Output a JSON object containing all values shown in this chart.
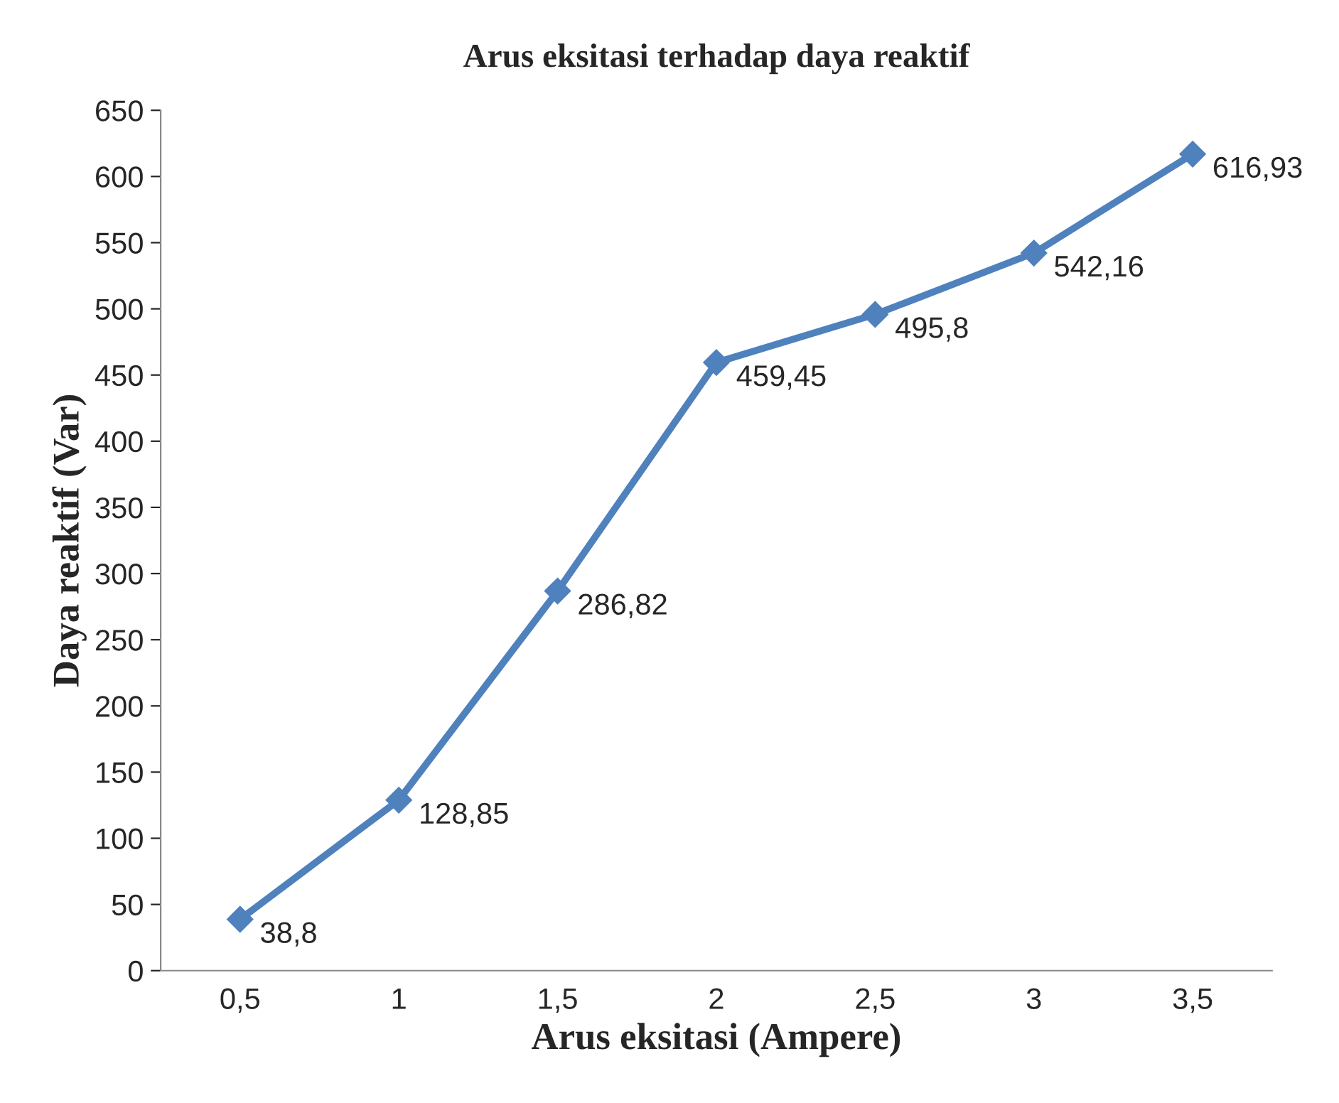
{
  "chart_data": {
    "type": "line",
    "title": "Arus eksitasi terhadap daya reaktif",
    "xlabel": "Arus eksitasi (Ampere)",
    "ylabel": "Daya reaktif (Var)",
    "categories": [
      "0,5",
      "1",
      "1,5",
      "2",
      "2,5",
      "3",
      "3,5"
    ],
    "series": [
      {
        "color": "#4f81bd",
        "values": [
          38.8,
          128.85,
          286.82,
          459.45,
          495.8,
          542.16,
          616.93
        ],
        "value_labels": [
          "38,8",
          "128,85",
          "286,82",
          "459,45",
          "495,8",
          "542,16",
          "616,93"
        ]
      }
    ],
    "ylim": [
      0,
      650
    ],
    "yticks": [
      0,
      50,
      100,
      150,
      200,
      250,
      300,
      350,
      400,
      450,
      500,
      550,
      600,
      650
    ],
    "marker": "diamond",
    "line_style": "solid",
    "grid": false,
    "legend": false
  }
}
